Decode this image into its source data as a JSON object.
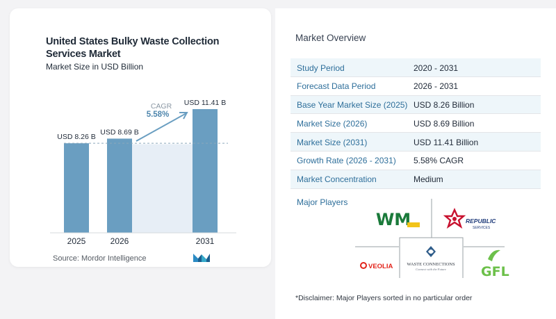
{
  "chart_data": {
    "type": "bar",
    "title": "United States Bulky Waste Collection Services Market",
    "subtitle": "Market Size in USD Billion",
    "categories": [
      "2025",
      "2026",
      "2031"
    ],
    "values": [
      8.26,
      8.69,
      11.41
    ],
    "value_labels": [
      "USD 8.26 B",
      "USD 8.69 B",
      "USD 11.41 B"
    ],
    "cagr_label": "CAGR",
    "cagr_value": "5.58%",
    "bar_color": "#6a9ec1",
    "shade_color": "#e7eef6",
    "source": "Source: Mordor Intelligence"
  },
  "overview": {
    "title": "Market Overview",
    "rows": [
      {
        "label": "Study Period",
        "value": "2020 - 2031"
      },
      {
        "label": "Forecast Data Period",
        "value": "2026 - 2031"
      },
      {
        "label": "Base Year Market Size (2025)",
        "value": "USD 8.26 Billion"
      },
      {
        "label": "Market Size (2026)",
        "value": "USD 8.69 Billion"
      },
      {
        "label": "Market Size (2031)",
        "value": "USD 11.41 Billion"
      },
      {
        "label": "Growth Rate (2026 - 2031)",
        "value": "5.58% CAGR"
      },
      {
        "label": "Market Concentration",
        "value": "Medium"
      }
    ]
  },
  "players": {
    "title": "Major Players",
    "logos": {
      "wm": "WM",
      "republic_1": "REPUBLIC",
      "republic_2": "SERVICES",
      "veolia": "VEOLIA",
      "waste_connections_1": "WASTE CONNECTIONS",
      "waste_connections_2": "Connect with the Future",
      "gfl": "GFL"
    },
    "disclaimer": "*Disclaimer: Major Players sorted in no particular order"
  }
}
